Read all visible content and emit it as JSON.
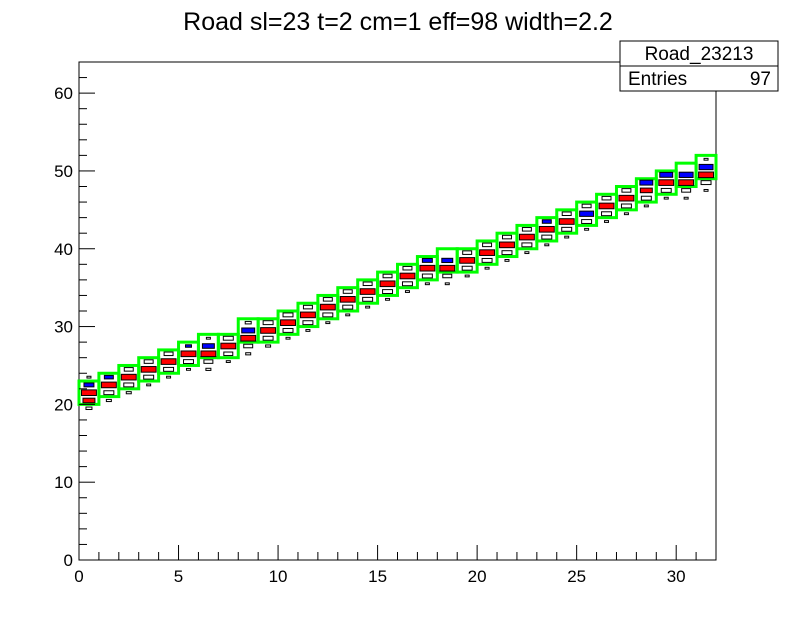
{
  "chart_data": {
    "type": "heatmap",
    "title": "Road sl=23 t=2 cm=1 eff=98 width=2.2",
    "xlim": [
      0,
      32
    ],
    "ylim": [
      0,
      64
    ],
    "x_ticks": [
      0,
      5,
      10,
      15,
      20,
      25,
      30
    ],
    "y_ticks": [
      0,
      10,
      20,
      30,
      40,
      50,
      60
    ],
    "stats_box": {
      "name": "Road_23213",
      "entries_label": "Entries",
      "entries_value": "97"
    },
    "colors": {
      "road": "#00ff00",
      "hit_primary": "#ff0000",
      "hit_secondary": "#0000ff",
      "outline": "#000000"
    },
    "road_boxes": [
      {
        "x": 0,
        "y": 20
      },
      {
        "x": 1,
        "y": 21
      },
      {
        "x": 2,
        "y": 22
      },
      {
        "x": 3,
        "y": 23
      },
      {
        "x": 4,
        "y": 24
      },
      {
        "x": 5,
        "y": 25
      },
      {
        "x": 6,
        "y": 26
      },
      {
        "x": 7,
        "y": 26
      },
      {
        "x": 8,
        "y": 28
      },
      {
        "x": 9,
        "y": 28
      },
      {
        "x": 10,
        "y": 29
      },
      {
        "x": 11,
        "y": 30
      },
      {
        "x": 12,
        "y": 31
      },
      {
        "x": 13,
        "y": 32
      },
      {
        "x": 14,
        "y": 33
      },
      {
        "x": 15,
        "y": 34
      },
      {
        "x": 16,
        "y": 35
      },
      {
        "x": 17,
        "y": 36
      },
      {
        "x": 18,
        "y": 37
      },
      {
        "x": 19,
        "y": 37
      },
      {
        "x": 20,
        "y": 38
      },
      {
        "x": 21,
        "y": 39
      },
      {
        "x": 22,
        "y": 40
      },
      {
        "x": 23,
        "y": 41
      },
      {
        "x": 24,
        "y": 42
      },
      {
        "x": 25,
        "y": 43
      },
      {
        "x": 26,
        "y": 44
      },
      {
        "x": 27,
        "y": 45
      },
      {
        "x": 28,
        "y": 46
      },
      {
        "x": 29,
        "y": 47
      },
      {
        "x": 30,
        "y": 48
      },
      {
        "x": 31,
        "y": 49
      }
    ],
    "cells": [
      {
        "x": 0,
        "y": 20,
        "c": "red",
        "w": 0.6
      },
      {
        "x": 0,
        "y": 21,
        "c": "red",
        "w": 0.75
      },
      {
        "x": 0,
        "y": 22,
        "c": "blue",
        "w": 0.5
      },
      {
        "x": 0,
        "y": 19,
        "c": "white",
        "w": 0.3
      },
      {
        "x": 0,
        "y": 23,
        "c": "white",
        "w": 0.2
      },
      {
        "x": 1,
        "y": 21,
        "c": "white",
        "w": 0.5
      },
      {
        "x": 1,
        "y": 22,
        "c": "red",
        "w": 0.75
      },
      {
        "x": 1,
        "y": 23,
        "c": "blue",
        "w": 0.45
      },
      {
        "x": 1,
        "y": 20,
        "c": "white",
        "w": 0.25
      },
      {
        "x": 2,
        "y": 22,
        "c": "white",
        "w": 0.5
      },
      {
        "x": 2,
        "y": 23,
        "c": "red",
        "w": 0.75
      },
      {
        "x": 2,
        "y": 24,
        "c": "white",
        "w": 0.45
      },
      {
        "x": 2,
        "y": 21,
        "c": "white",
        "w": 0.25
      },
      {
        "x": 3,
        "y": 23,
        "c": "white",
        "w": 0.5
      },
      {
        "x": 3,
        "y": 24,
        "c": "red",
        "w": 0.75
      },
      {
        "x": 3,
        "y": 25,
        "c": "white",
        "w": 0.45
      },
      {
        "x": 3,
        "y": 22,
        "c": "white",
        "w": 0.2
      },
      {
        "x": 4,
        "y": 24,
        "c": "white",
        "w": 0.5
      },
      {
        "x": 4,
        "y": 25,
        "c": "red",
        "w": 0.75
      },
      {
        "x": 4,
        "y": 26,
        "c": "white",
        "w": 0.45
      },
      {
        "x": 4,
        "y": 23,
        "c": "white",
        "w": 0.2
      },
      {
        "x": 5,
        "y": 25,
        "c": "white",
        "w": 0.5
      },
      {
        "x": 5,
        "y": 26,
        "c": "red",
        "w": 0.75
      },
      {
        "x": 5,
        "y": 27,
        "c": "blue",
        "w": 0.3
      },
      {
        "x": 5,
        "y": 24,
        "c": "white",
        "w": 0.2
      },
      {
        "x": 6,
        "y": 25,
        "c": "white",
        "w": 0.45
      },
      {
        "x": 6,
        "y": 26,
        "c": "red",
        "w": 0.75
      },
      {
        "x": 6,
        "y": 27,
        "c": "blue",
        "w": 0.6
      },
      {
        "x": 6,
        "y": 24,
        "c": "white",
        "w": 0.25
      },
      {
        "x": 6,
        "y": 28,
        "c": "white",
        "w": 0.2
      },
      {
        "x": 7,
        "y": 26,
        "c": "white",
        "w": 0.45
      },
      {
        "x": 7,
        "y": 27,
        "c": "red",
        "w": 0.75
      },
      {
        "x": 7,
        "y": 28,
        "c": "white",
        "w": 0.5
      },
      {
        "x": 7,
        "y": 25,
        "c": "white",
        "w": 0.2
      },
      {
        "x": 8,
        "y": 27,
        "c": "white",
        "w": 0.45
      },
      {
        "x": 8,
        "y": 28,
        "c": "red",
        "w": 0.75
      },
      {
        "x": 8,
        "y": 29,
        "c": "blue",
        "w": 0.65
      },
      {
        "x": 8,
        "y": 26,
        "c": "white",
        "w": 0.25
      },
      {
        "x": 8,
        "y": 30,
        "c": "white",
        "w": 0.3
      },
      {
        "x": 9,
        "y": 28,
        "c": "white",
        "w": 0.5
      },
      {
        "x": 9,
        "y": 29,
        "c": "red",
        "w": 0.75
      },
      {
        "x": 9,
        "y": 30,
        "c": "white",
        "w": 0.5
      },
      {
        "x": 9,
        "y": 27,
        "c": "white",
        "w": 0.25
      },
      {
        "x": 10,
        "y": 29,
        "c": "white",
        "w": 0.5
      },
      {
        "x": 10,
        "y": 30,
        "c": "red",
        "w": 0.75
      },
      {
        "x": 10,
        "y": 31,
        "c": "white",
        "w": 0.5
      },
      {
        "x": 10,
        "y": 28,
        "c": "white",
        "w": 0.2
      },
      {
        "x": 11,
        "y": 30,
        "c": "white",
        "w": 0.5
      },
      {
        "x": 11,
        "y": 31,
        "c": "red",
        "w": 0.75
      },
      {
        "x": 11,
        "y": 32,
        "c": "white",
        "w": 0.45
      },
      {
        "x": 11,
        "y": 29,
        "c": "white",
        "w": 0.2
      },
      {
        "x": 12,
        "y": 31,
        "c": "white",
        "w": 0.5
      },
      {
        "x": 12,
        "y": 32,
        "c": "red",
        "w": 0.75
      },
      {
        "x": 12,
        "y": 33,
        "c": "white",
        "w": 0.45
      },
      {
        "x": 12,
        "y": 30,
        "c": "white",
        "w": 0.2
      },
      {
        "x": 13,
        "y": 32,
        "c": "white",
        "w": 0.5
      },
      {
        "x": 13,
        "y": 33,
        "c": "red",
        "w": 0.75
      },
      {
        "x": 13,
        "y": 34,
        "c": "white",
        "w": 0.45
      },
      {
        "x": 13,
        "y": 31,
        "c": "white",
        "w": 0.2
      },
      {
        "x": 14,
        "y": 33,
        "c": "white",
        "w": 0.5
      },
      {
        "x": 14,
        "y": 34,
        "c": "red",
        "w": 0.75
      },
      {
        "x": 14,
        "y": 35,
        "c": "white",
        "w": 0.45
      },
      {
        "x": 14,
        "y": 32,
        "c": "white",
        "w": 0.2
      },
      {
        "x": 15,
        "y": 34,
        "c": "white",
        "w": 0.5
      },
      {
        "x": 15,
        "y": 35,
        "c": "red",
        "w": 0.75
      },
      {
        "x": 15,
        "y": 36,
        "c": "white",
        "w": 0.45
      },
      {
        "x": 15,
        "y": 33,
        "c": "white",
        "w": 0.2
      },
      {
        "x": 16,
        "y": 35,
        "c": "white",
        "w": 0.5
      },
      {
        "x": 16,
        "y": 36,
        "c": "red",
        "w": 0.75
      },
      {
        "x": 16,
        "y": 37,
        "c": "white",
        "w": 0.45
      },
      {
        "x": 16,
        "y": 34,
        "c": "white",
        "w": 0.2
      },
      {
        "x": 17,
        "y": 36,
        "c": "white",
        "w": 0.5
      },
      {
        "x": 17,
        "y": 37,
        "c": "red",
        "w": 0.75
      },
      {
        "x": 17,
        "y": 38,
        "c": "blue",
        "w": 0.5
      },
      {
        "x": 17,
        "y": 35,
        "c": "white",
        "w": 0.2
      },
      {
        "x": 18,
        "y": 36,
        "c": "white",
        "w": 0.45
      },
      {
        "x": 18,
        "y": 37,
        "c": "red",
        "w": 0.75
      },
      {
        "x": 18,
        "y": 38,
        "c": "blue",
        "w": 0.55
      },
      {
        "x": 18,
        "y": 35,
        "c": "white",
        "w": 0.2
      },
      {
        "x": 19,
        "y": 37,
        "c": "white",
        "w": 0.5
      },
      {
        "x": 19,
        "y": 38,
        "c": "red",
        "w": 0.75
      },
      {
        "x": 19,
        "y": 39,
        "c": "white",
        "w": 0.45
      },
      {
        "x": 19,
        "y": 36,
        "c": "white",
        "w": 0.2
      },
      {
        "x": 20,
        "y": 38,
        "c": "white",
        "w": 0.5
      },
      {
        "x": 20,
        "y": 39,
        "c": "red",
        "w": 0.75
      },
      {
        "x": 20,
        "y": 40,
        "c": "white",
        "w": 0.45
      },
      {
        "x": 20,
        "y": 37,
        "c": "white",
        "w": 0.2
      },
      {
        "x": 21,
        "y": 39,
        "c": "white",
        "w": 0.5
      },
      {
        "x": 21,
        "y": 40,
        "c": "red",
        "w": 0.75
      },
      {
        "x": 21,
        "y": 41,
        "c": "white",
        "w": 0.45
      },
      {
        "x": 21,
        "y": 38,
        "c": "white",
        "w": 0.2
      },
      {
        "x": 22,
        "y": 40,
        "c": "white",
        "w": 0.5
      },
      {
        "x": 22,
        "y": 41,
        "c": "red",
        "w": 0.75
      },
      {
        "x": 22,
        "y": 42,
        "c": "white",
        "w": 0.45
      },
      {
        "x": 22,
        "y": 39,
        "c": "white",
        "w": 0.2
      },
      {
        "x": 23,
        "y": 41,
        "c": "white",
        "w": 0.5
      },
      {
        "x": 23,
        "y": 42,
        "c": "red",
        "w": 0.75
      },
      {
        "x": 23,
        "y": 43,
        "c": "blue",
        "w": 0.45
      },
      {
        "x": 23,
        "y": 40,
        "c": "white",
        "w": 0.2
      },
      {
        "x": 24,
        "y": 42,
        "c": "white",
        "w": 0.5
      },
      {
        "x": 24,
        "y": 43,
        "c": "red",
        "w": 0.75
      },
      {
        "x": 24,
        "y": 44,
        "c": "white",
        "w": 0.45
      },
      {
        "x": 24,
        "y": 41,
        "c": "white",
        "w": 0.2
      },
      {
        "x": 25,
        "y": 43,
        "c": "white",
        "w": 0.5
      },
      {
        "x": 25,
        "y": 44,
        "c": "blue",
        "w": 0.7
      },
      {
        "x": 25,
        "y": 45,
        "c": "white",
        "w": 0.45
      },
      {
        "x": 25,
        "y": 42,
        "c": "white",
        "w": 0.2
      },
      {
        "x": 26,
        "y": 44,
        "c": "white",
        "w": 0.5
      },
      {
        "x": 26,
        "y": 45,
        "c": "red",
        "w": 0.75
      },
      {
        "x": 26,
        "y": 46,
        "c": "white",
        "w": 0.45
      },
      {
        "x": 26,
        "y": 43,
        "c": "white",
        "w": 0.2
      },
      {
        "x": 27,
        "y": 45,
        "c": "white",
        "w": 0.5
      },
      {
        "x": 27,
        "y": 46,
        "c": "red",
        "w": 0.75
      },
      {
        "x": 27,
        "y": 47,
        "c": "white",
        "w": 0.45
      },
      {
        "x": 27,
        "y": 44,
        "c": "white",
        "w": 0.2
      },
      {
        "x": 28,
        "y": 46,
        "c": "white",
        "w": 0.5
      },
      {
        "x": 28,
        "y": 47,
        "c": "red",
        "w": 0.6
      },
      {
        "x": 28,
        "y": 48,
        "c": "blue",
        "w": 0.65
      },
      {
        "x": 28,
        "y": 45,
        "c": "white",
        "w": 0.2
      },
      {
        "x": 29,
        "y": 47,
        "c": "white",
        "w": 0.5
      },
      {
        "x": 29,
        "y": 48,
        "c": "red",
        "w": 0.75
      },
      {
        "x": 29,
        "y": 49,
        "c": "blue",
        "w": 0.65
      },
      {
        "x": 29,
        "y": 46,
        "c": "white",
        "w": 0.2
      },
      {
        "x": 30,
        "y": 47,
        "c": "white",
        "w": 0.45
      },
      {
        "x": 30,
        "y": 48,
        "c": "red",
        "w": 0.75
      },
      {
        "x": 30,
        "y": 49,
        "c": "blue",
        "w": 0.7
      },
      {
        "x": 30,
        "y": 46,
        "c": "white",
        "w": 0.2
      },
      {
        "x": 31,
        "y": 48,
        "c": "white",
        "w": 0.5
      },
      {
        "x": 31,
        "y": 49,
        "c": "red",
        "w": 0.75
      },
      {
        "x": 31,
        "y": 50,
        "c": "blue",
        "w": 0.7
      },
      {
        "x": 31,
        "y": 47,
        "c": "white",
        "w": 0.2
      },
      {
        "x": 31,
        "y": 51,
        "c": "white",
        "w": 0.2
      }
    ]
  }
}
